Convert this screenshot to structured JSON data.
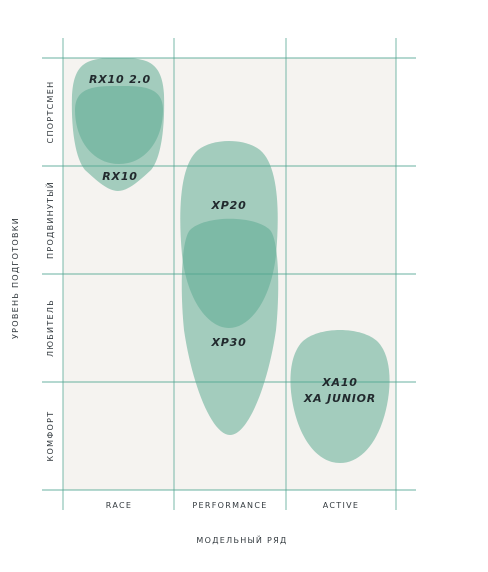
{
  "chart_data": {
    "type": "scatter",
    "xlabel": "МОДЕЛЬНЫЙ РЯД",
    "ylabel": "УРОВЕНЬ ПОДГОТОВКИ",
    "categories": [
      "RACE",
      "PERFORMANCE",
      "ACTIVE"
    ],
    "levels": [
      "КОМФОРТ",
      "ЛЮБИТЕЛЬ",
      "ПРОДВИНУТЫЙ",
      "СПОРТСМЕН"
    ],
    "grid": true,
    "colors": {
      "plot_bg": "#f5f3f0",
      "grid": "#4fa48f",
      "blob": "#5fab93"
    },
    "series": [
      {
        "label": "RX10 2.0",
        "category": "RACE",
        "level_min": 3.55,
        "level_max": 4.0
      },
      {
        "label": "RX10",
        "category": "RACE",
        "level_min": 2.75,
        "level_max": 3.75
      },
      {
        "label": "XP20",
        "category": "PERFORMANCE",
        "level_min": 1.75,
        "level_max": 3.25
      },
      {
        "label": "XP30",
        "category": "PERFORMANCE",
        "level_min": 0.5,
        "level_max": 2.5
      },
      {
        "label": "XA10",
        "label2": "XA JUNIOR",
        "category": "ACTIVE",
        "level_min": 0.25,
        "level_max": 1.5
      }
    ]
  }
}
